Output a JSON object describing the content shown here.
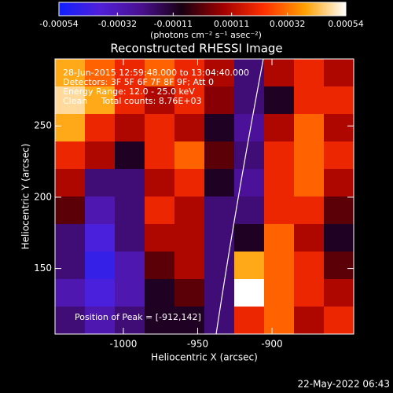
{
  "chart_data": {
    "type": "heatmap",
    "title": "Reconstructed RHESSI Image",
    "colorbar_label": "(photons cm⁻² s⁻¹ asec⁻²)",
    "x_label": "Heliocentric X (arcsec)",
    "y_label": "Heliocentric Y (arcsec)",
    "annotations": [
      "28-Jun-2015 12:59:48.000 to 13:04:40.000",
      "Detectors: 3F 5F 6F 7F 8F 9F; Att 0",
      "Energy Range: 12.0 - 25.0 keV",
      "Clean     Total counts: 8.76E+03"
    ],
    "peak_label": "Position of Peak = [-912,142]",
    "timestamp": "22-May-2022 06:43",
    "xlim": [
      -1046,
      -845
    ],
    "ylim": [
      104,
      297
    ],
    "xticks": [
      -1000,
      -950,
      -900
    ],
    "yticks": [
      150,
      200,
      250
    ],
    "clim": [
      -0.00054,
      0.00054
    ],
    "cticks": [
      -0.00054,
      -0.00032,
      -0.00011,
      0.00011,
      0.00032,
      0.00054
    ],
    "colormap": [
      "#1020ff",
      "#5020d8",
      "#4a1090",
      "#180010",
      "#a00000",
      "#ff3000",
      "#ffa000",
      "#ffffff"
    ],
    "z": [
      [
        0.0004,
        0.0003,
        0.0002,
        0.0003,
        0.0002,
        0.0001,
        -0.0002,
        0.0001,
        0.0002,
        0.0001
      ],
      [
        0.00048,
        0.0004,
        0.0002,
        0.0001,
        0.0002,
        5e-05,
        -0.0002,
        -0.0001,
        0.0002,
        0.0002
      ],
      [
        0.0004,
        0.0002,
        0.0001,
        0.0002,
        0.0001,
        -0.0001,
        -0.00025,
        0.0001,
        0.0003,
        0.0001
      ],
      [
        0.0002,
        0.0001,
        -0.0001,
        0.0002,
        0.0003,
        0,
        -0.0002,
        0.0002,
        0.0003,
        0.0002
      ],
      [
        0.0001,
        -0.0002,
        -0.0002,
        0.0001,
        0.0002,
        -0.0001,
        -0.00025,
        0.0002,
        0.0003,
        0.0001
      ],
      [
        0,
        -0.0003,
        -0.0002,
        0.0002,
        0.0001,
        -0.0002,
        -0.0002,
        0.0002,
        0.0002,
        0
      ],
      [
        -0.0002,
        -0.0004,
        -0.0002,
        0.0001,
        0.0001,
        -0.0002,
        -0.0001,
        0.0003,
        0.0001,
        -0.0001
      ],
      [
        -0.0002,
        -0.00045,
        -0.0003,
        0,
        0.0001,
        -0.0002,
        0.0004,
        0.0003,
        0.0002,
        0
      ],
      [
        -0.0003,
        -0.0004,
        -0.0003,
        -0.0001,
        0,
        -0.0002,
        0.00054,
        0.0003,
        0.0002,
        0.0001
      ],
      [
        -0.0002,
        -0.0003,
        -0.0002,
        -0.0001,
        -0.0001,
        -0.0002,
        0.0002,
        0.0003,
        0.0001,
        0.0002
      ]
    ]
  }
}
